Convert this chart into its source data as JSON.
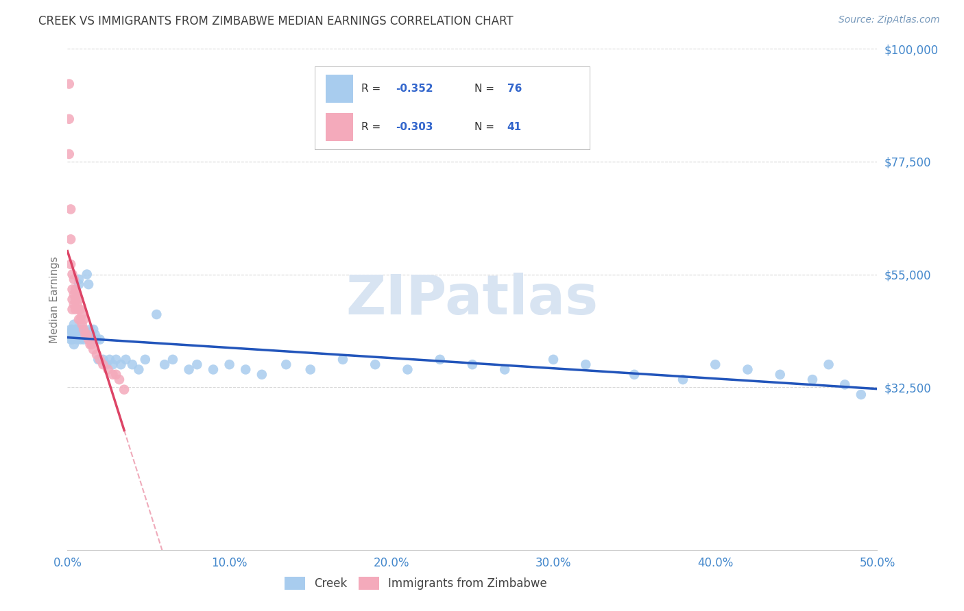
{
  "title": "CREEK VS IMMIGRANTS FROM ZIMBABWE MEDIAN EARNINGS CORRELATION CHART",
  "source": "Source: ZipAtlas.com",
  "ylabel": "Median Earnings",
  "xlim": [
    0.0,
    0.5
  ],
  "ylim": [
    0,
    100000
  ],
  "yticks": [
    0,
    32500,
    55000,
    77500,
    100000
  ],
  "ytick_labels": [
    "",
    "$32,500",
    "$55,000",
    "$77,500",
    "$100,000"
  ],
  "xtick_labels": [
    "0.0%",
    "10.0%",
    "20.0%",
    "30.0%",
    "40.0%",
    "50.0%"
  ],
  "xticks": [
    0.0,
    0.1,
    0.2,
    0.3,
    0.4,
    0.5
  ],
  "creek_R": -0.352,
  "creek_N": 76,
  "zimb_R": -0.303,
  "zimb_N": 41,
  "creek_color": "#A8CCEE",
  "zimb_color": "#F4AABB",
  "creek_line_color": "#2255BB",
  "zimb_line_color": "#DD4466",
  "background_color": "#FFFFFF",
  "grid_color": "#CCCCCC",
  "title_color": "#404040",
  "axis_label_color": "#777777",
  "tick_color": "#4488CC",
  "watermark_color": "#D8E4F2",
  "source_color": "#7799BB",
  "legend_text_color": "#333333",
  "legend_value_color": "#3366CC",
  "creek_x": [
    0.001,
    0.002,
    0.002,
    0.003,
    0.003,
    0.003,
    0.004,
    0.004,
    0.004,
    0.005,
    0.005,
    0.005,
    0.006,
    0.006,
    0.006,
    0.006,
    0.007,
    0.007,
    0.007,
    0.008,
    0.008,
    0.009,
    0.009,
    0.009,
    0.01,
    0.01,
    0.01,
    0.011,
    0.012,
    0.012,
    0.013,
    0.014,
    0.015,
    0.016,
    0.017,
    0.018,
    0.019,
    0.02,
    0.022,
    0.024,
    0.026,
    0.028,
    0.03,
    0.033,
    0.036,
    0.04,
    0.044,
    0.048,
    0.055,
    0.06,
    0.065,
    0.075,
    0.08,
    0.09,
    0.1,
    0.11,
    0.12,
    0.135,
    0.15,
    0.17,
    0.19,
    0.21,
    0.23,
    0.25,
    0.27,
    0.3,
    0.32,
    0.35,
    0.38,
    0.4,
    0.42,
    0.44,
    0.46,
    0.47,
    0.48,
    0.49
  ],
  "creek_y": [
    43000,
    44000,
    42000,
    43500,
    42000,
    44000,
    45000,
    43000,
    41000,
    44000,
    42500,
    43000,
    43500,
    44000,
    42000,
    43000,
    53000,
    54000,
    43000,
    44000,
    42000,
    43000,
    44000,
    42500,
    43000,
    42000,
    44000,
    43000,
    55000,
    43000,
    53000,
    44000,
    42000,
    44000,
    43000,
    42000,
    38000,
    42000,
    38000,
    37000,
    38000,
    37000,
    38000,
    37000,
    38000,
    37000,
    36000,
    38000,
    47000,
    37000,
    38000,
    36000,
    37000,
    36000,
    37000,
    36000,
    35000,
    37000,
    36000,
    38000,
    37000,
    36000,
    38000,
    37000,
    36000,
    38000,
    37000,
    35000,
    34000,
    37000,
    36000,
    35000,
    34000,
    37000,
    33000,
    31000
  ],
  "zimb_x": [
    0.001,
    0.001,
    0.001,
    0.002,
    0.002,
    0.002,
    0.003,
    0.003,
    0.003,
    0.003,
    0.004,
    0.004,
    0.004,
    0.005,
    0.005,
    0.005,
    0.006,
    0.006,
    0.007,
    0.007,
    0.007,
    0.008,
    0.008,
    0.009,
    0.009,
    0.01,
    0.01,
    0.011,
    0.012,
    0.013,
    0.014,
    0.015,
    0.016,
    0.018,
    0.02,
    0.022,
    0.025,
    0.028,
    0.03,
    0.032,
    0.035
  ],
  "zimb_y": [
    93000,
    86000,
    79000,
    68000,
    62000,
    57000,
    55000,
    52000,
    50000,
    48000,
    54000,
    51000,
    49000,
    52000,
    50000,
    48000,
    51000,
    49000,
    50000,
    48000,
    46000,
    48000,
    46000,
    47000,
    45000,
    46000,
    44000,
    43000,
    43000,
    42000,
    41000,
    41000,
    40000,
    39000,
    38000,
    37000,
    36000,
    35000,
    35000,
    34000,
    32000
  ]
}
